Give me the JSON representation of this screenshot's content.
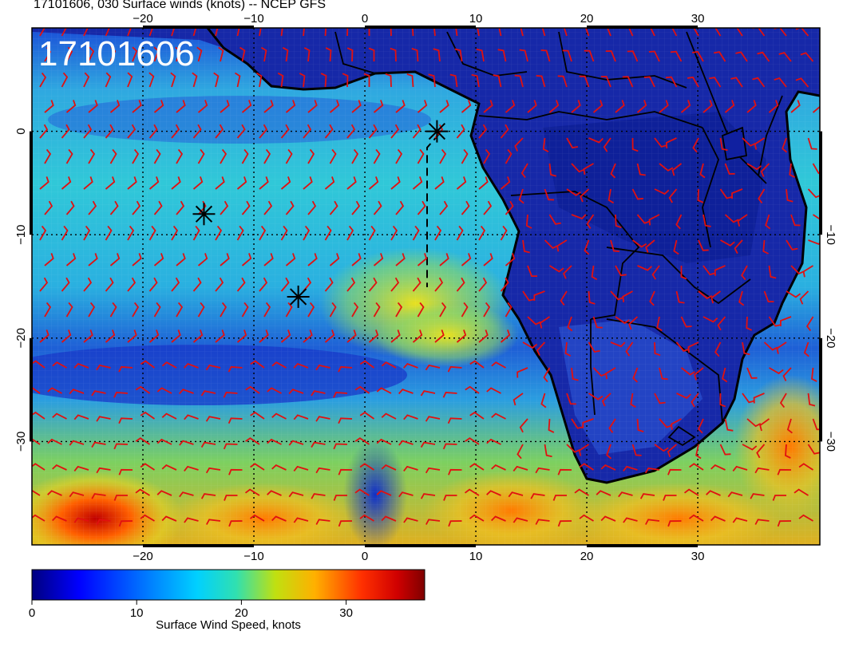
{
  "title": "17101606, 030 Surface winds (knots) -- NCEP GFS",
  "stamp": "17101606",
  "map": {
    "lon_range": [
      -30,
      41
    ],
    "lat_range": [
      -40,
      10
    ],
    "lon_ticks_top": [
      "-20",
      "-10",
      "0",
      "10",
      "20",
      "30"
    ],
    "lon_ticks_bottom": [
      "-20",
      "-10",
      "0",
      "10",
      "20",
      "30"
    ],
    "lat_ticks_left": [
      "0",
      "-10",
      "-20",
      "-30"
    ],
    "lat_ticks_right": [
      "-10",
      "-20",
      "-30"
    ],
    "lon_tick_values": [
      -20,
      -10,
      0,
      10,
      20,
      30
    ],
    "lat_tick_values": [
      0,
      -10,
      -20,
      -30
    ],
    "gridline_style": "dotted",
    "barb_color": "#e11010",
    "coast_color": "#000000",
    "markers": [
      {
        "lon": -14.5,
        "lat": -8.0,
        "symbol": "asterisk"
      },
      {
        "lon": -6.0,
        "lat": -16.0,
        "symbol": "asterisk"
      },
      {
        "lon": 6.5,
        "lat": 0.0,
        "symbol": "asterisk"
      }
    ]
  },
  "colorbar": {
    "label": "Surface Wind Speed, knots",
    "ticks": [
      "0",
      "10",
      "20",
      "30"
    ],
    "tick_values": [
      0,
      10,
      20,
      30
    ],
    "range": [
      0,
      37.5
    ],
    "colormap": [
      "#00007f",
      "#0000ff",
      "#007fff",
      "#00d0ff",
      "#20e0c0",
      "#e0e000",
      "#ff8000",
      "#e00000",
      "#7f0000"
    ]
  }
}
